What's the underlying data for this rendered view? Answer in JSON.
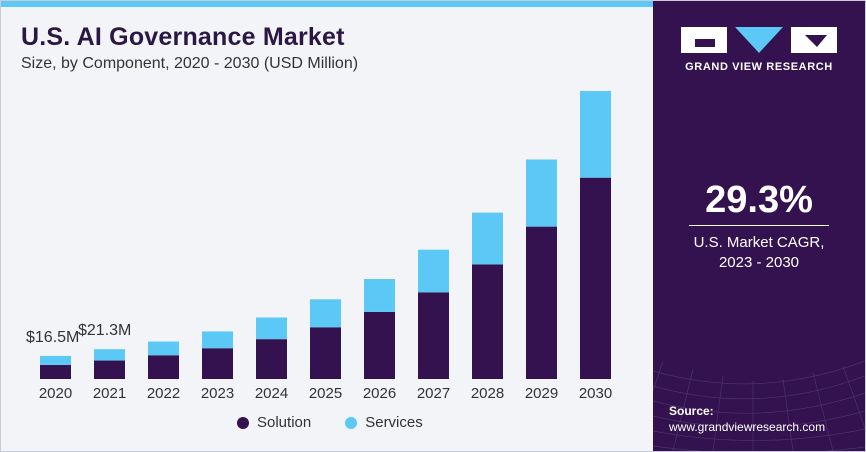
{
  "header": {
    "title": "U.S. AI Governance Market",
    "subtitle": "Size, by Component, 2020 - 2030 (USD Million)"
  },
  "colors": {
    "solution": "#33124f",
    "services": "#5bc8f5",
    "panel": "#33124f",
    "accent": "#5bc8f5"
  },
  "chart_data": {
    "type": "bar",
    "stacked": true,
    "categories": [
      "2020",
      "2021",
      "2022",
      "2023",
      "2024",
      "2025",
      "2026",
      "2027",
      "2028",
      "2029",
      "2030"
    ],
    "series": [
      {
        "name": "Solution",
        "values": [
          10.0,
          13.2,
          17.0,
          22.0,
          28.5,
          37.0,
          48.0,
          62.0,
          82.0,
          109.0,
          144.0
        ]
      },
      {
        "name": "Services",
        "values": [
          6.5,
          8.1,
          9.8,
          12.0,
          15.5,
          20.0,
          23.5,
          30.5,
          37.0,
          48.0,
          62.0
        ]
      }
    ],
    "data_labels": [
      {
        "category": "2020",
        "text": "$16.5M"
      },
      {
        "category": "2021",
        "text": "$21.3M"
      }
    ],
    "ylim": [
      0,
      220
    ],
    "grid": false,
    "legend": "bottom"
  },
  "legend": {
    "items": [
      {
        "label": "Solution"
      },
      {
        "label": "Services"
      }
    ]
  },
  "sidebar": {
    "brand": "GRAND VIEW RESEARCH",
    "cagr_value": "29.3%",
    "cagr_label_line1": "U.S. Market CAGR,",
    "cagr_label_line2": "2023 - 2030",
    "source_label": "Source:",
    "source_url": "www.grandviewresearch.com"
  }
}
